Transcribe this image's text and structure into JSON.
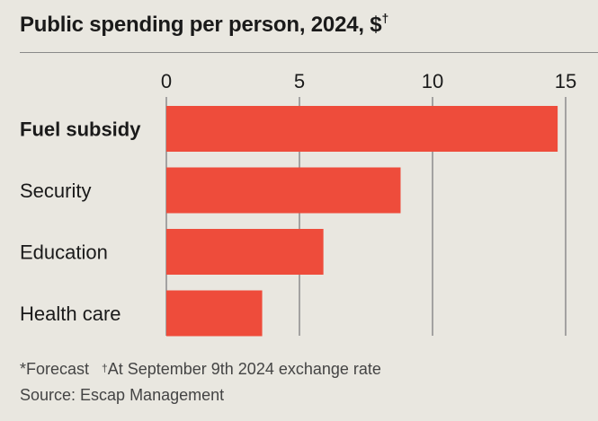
{
  "header": {
    "title": "Public spending per person, 2024, $",
    "title_mark": "†"
  },
  "chart_data": {
    "type": "bar",
    "orientation": "horizontal",
    "categories": [
      "Fuel subsidy",
      "Security",
      "Education",
      "Health care"
    ],
    "values": [
      14.7,
      8.8,
      5.9,
      3.6
    ],
    "highlighted_category": "Fuel subsidy",
    "xlim": [
      0,
      15
    ],
    "xticks": [
      "0",
      "5",
      "10",
      "15"
    ],
    "grid": "vertical",
    "bar_color": "#ee4c3b"
  },
  "footer": {
    "note1": "*Forecast",
    "note2_mark": "†",
    "note2": "At September 9th 2024 exchange rate",
    "source": "Source: Escap Management"
  },
  "colors": {
    "background": "#e9e7e0",
    "bar": "#ee4c3b",
    "grid": "#8c8c8c"
  }
}
